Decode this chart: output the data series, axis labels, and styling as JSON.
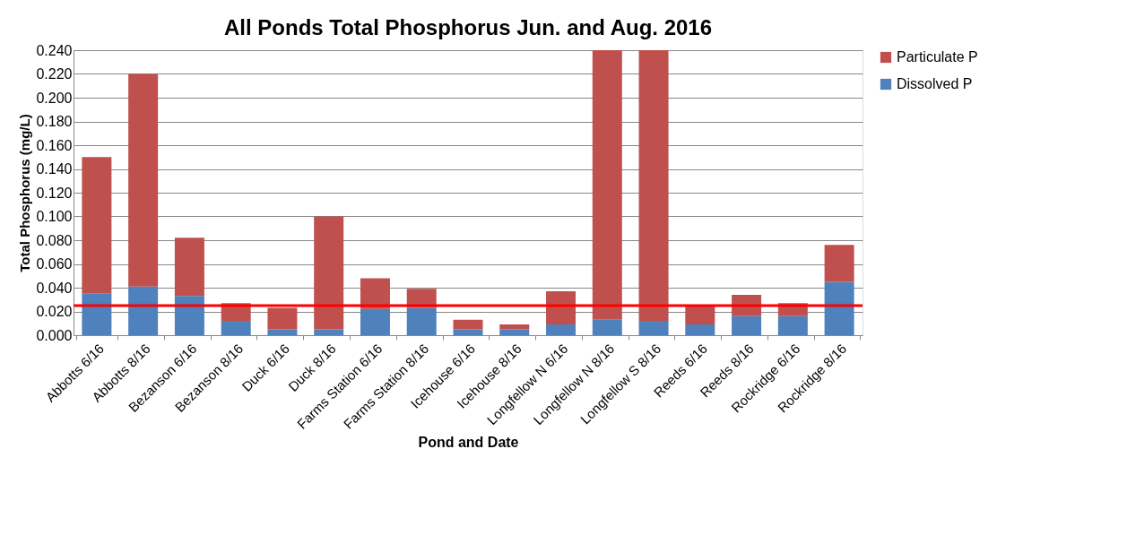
{
  "chart_data": {
    "type": "bar",
    "title": "All Ponds Total Phosphorus Jun. and Aug. 2016",
    "xlabel": "Pond and Date",
    "ylabel": "Total Phosphorus  (mg/L)",
    "categories": [
      "Abbotts 6/16",
      "Abbotts 8/16",
      "Bezanson 6/16",
      "Bezanson 8/16",
      "Duck 6/16",
      "Duck 8/16",
      "Farms Station 6/16",
      "Farms Station 8/16",
      "Icehouse 6/16",
      "Icehouse 8/16",
      "Longfellow N 6/16",
      "Longfellow N 8/16",
      "Longfellow S 8/16",
      "Reeds 6/16",
      "Reeds 8/16",
      "Rockridge 6/16",
      "Rockridge 8/16"
    ],
    "stacked": true,
    "series": [
      {
        "name": "Dissolved P",
        "color": "#4f81bd",
        "values": [
          0.035,
          0.041,
          0.033,
          0.012,
          0.005,
          0.005,
          0.022,
          0.023,
          0.005,
          0.005,
          0.009,
          0.013,
          0.012,
          0.009,
          0.016,
          0.016,
          0.045
        ]
      },
      {
        "name": "Particulate P",
        "color": "#c0504d",
        "values": [
          0.115,
          0.179,
          0.049,
          0.015,
          0.018,
          0.095,
          0.026,
          0.016,
          0.008,
          0.004,
          0.028,
          0.227,
          0.228,
          0.016,
          0.018,
          0.011,
          0.031
        ]
      }
    ],
    "ylim": [
      0,
      0.24
    ],
    "yticks": [
      {
        "value": 0,
        "label": "0.000"
      },
      {
        "value": 0.02,
        "label": "0.020"
      },
      {
        "value": 0.04,
        "label": "0.040"
      },
      {
        "value": 0.06,
        "label": "0.060"
      },
      {
        "value": 0.08,
        "label": "0.080"
      },
      {
        "value": 0.1,
        "label": "0.100"
      },
      {
        "value": 0.12,
        "label": "0.120"
      },
      {
        "value": 0.14,
        "label": "0.140"
      },
      {
        "value": 0.16,
        "label": "0.160"
      },
      {
        "value": 0.18,
        "label": "0.180"
      },
      {
        "value": 0.2,
        "label": "0.200"
      },
      {
        "value": 0.22,
        "label": "0.220"
      },
      {
        "value": 0.24,
        "label": "0.240"
      }
    ],
    "ref_lines": [
      {
        "axis": "y",
        "value": 0.025,
        "color": "#ff0000"
      }
    ],
    "grid": "y",
    "legend": "right"
  }
}
